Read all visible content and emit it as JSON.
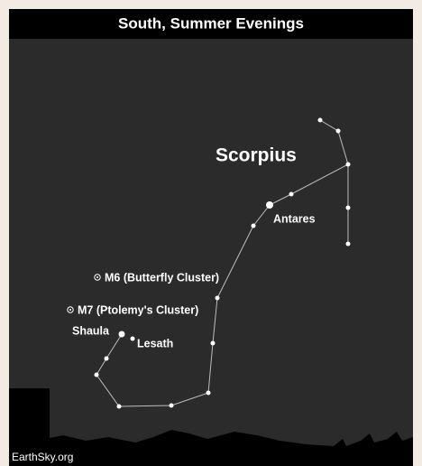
{
  "header": {
    "title": "South, Summer Evenings"
  },
  "constellation": {
    "name": "Scorpius"
  },
  "labels": {
    "antares": "Antares",
    "m6": "M6 (Butterfly Cluster)",
    "m7": "M7 (Ptolemy's Cluster)",
    "shaula": "Shaula",
    "lesath": "Lesath"
  },
  "credit": "EarthSky.org"
}
